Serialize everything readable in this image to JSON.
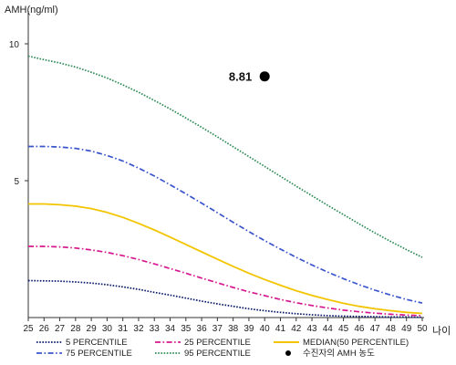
{
  "chart_data": {
    "type": "line",
    "ylabel": "AMH(ng/ml)",
    "xlabel": "나이",
    "xlim": [
      25,
      50
    ],
    "ylim": [
      0,
      11
    ],
    "yticks": [
      5,
      10
    ],
    "x": [
      25,
      26,
      27,
      28,
      29,
      30,
      31,
      32,
      33,
      34,
      35,
      36,
      37,
      38,
      39,
      40,
      41,
      42,
      43,
      44,
      45,
      46,
      47,
      48,
      49,
      50
    ],
    "series": [
      {
        "name": "5 PERCENTILE",
        "style": "dotted",
        "color": "#0a1a6b",
        "values": [
          1.35,
          1.34,
          1.33,
          1.3,
          1.26,
          1.2,
          1.12,
          1.03,
          0.92,
          0.82,
          0.71,
          0.6,
          0.5,
          0.41,
          0.32,
          0.25,
          0.19,
          0.14,
          0.1,
          0.07,
          0.05,
          0.04,
          0.03,
          0.02,
          0.02,
          0.01
        ]
      },
      {
        "name": "25 PERCENTILE",
        "style": "dashdot",
        "color": "#d6198f",
        "values": [
          2.6,
          2.6,
          2.58,
          2.54,
          2.47,
          2.38,
          2.26,
          2.12,
          1.96,
          1.79,
          1.62,
          1.44,
          1.27,
          1.1,
          0.94,
          0.8,
          0.66,
          0.54,
          0.44,
          0.35,
          0.27,
          0.21,
          0.16,
          0.12,
          0.09,
          0.07
        ]
      },
      {
        "name": "MEDIAN(50 PERCENTILE)",
        "style": "solid",
        "color": "#f2c500",
        "values": [
          4.15,
          4.15,
          4.12,
          4.07,
          3.98,
          3.84,
          3.66,
          3.44,
          3.2,
          2.94,
          2.67,
          2.4,
          2.13,
          1.87,
          1.62,
          1.39,
          1.18,
          0.98,
          0.81,
          0.66,
          0.52,
          0.41,
          0.32,
          0.25,
          0.19,
          0.15
        ]
      },
      {
        "name": "75 PERCENTILE",
        "style": "dashdot",
        "color": "#3a55cc",
        "values": [
          6.25,
          6.25,
          6.23,
          6.18,
          6.08,
          5.92,
          5.72,
          5.46,
          5.17,
          4.85,
          4.52,
          4.18,
          3.83,
          3.48,
          3.14,
          2.81,
          2.5,
          2.2,
          1.92,
          1.66,
          1.42,
          1.2,
          1.0,
          0.82,
          0.66,
          0.53
        ]
      },
      {
        "name": "95 PERCENTILE",
        "style": "dotted",
        "color": "#2e8b57",
        "values": [
          9.55,
          9.42,
          9.3,
          9.15,
          8.96,
          8.75,
          8.5,
          8.23,
          7.93,
          7.62,
          7.29,
          6.95,
          6.6,
          6.24,
          5.88,
          5.52,
          5.16,
          4.8,
          4.45,
          4.1,
          3.76,
          3.42,
          3.09,
          2.78,
          2.48,
          2.2
        ]
      }
    ],
    "point": {
      "name": "수진자의 AMH 농도",
      "x": 40,
      "y": 8.81,
      "label": "8.81",
      "color": "#000000"
    },
    "legend": {
      "position": "bottom",
      "items": [
        {
          "label": "5 PERCENTILE",
          "series": 0
        },
        {
          "label": "25 PERCENTILE",
          "series": 1
        },
        {
          "label": "MEDIAN(50 PERCENTILE)",
          "series": 2
        },
        {
          "label": "75 PERCENTILE",
          "series": 3
        },
        {
          "label": "95 PERCENTILE",
          "series": 4
        },
        {
          "label": "수진자의 AMH 농도",
          "series": "point"
        }
      ]
    },
    "grid": false
  }
}
